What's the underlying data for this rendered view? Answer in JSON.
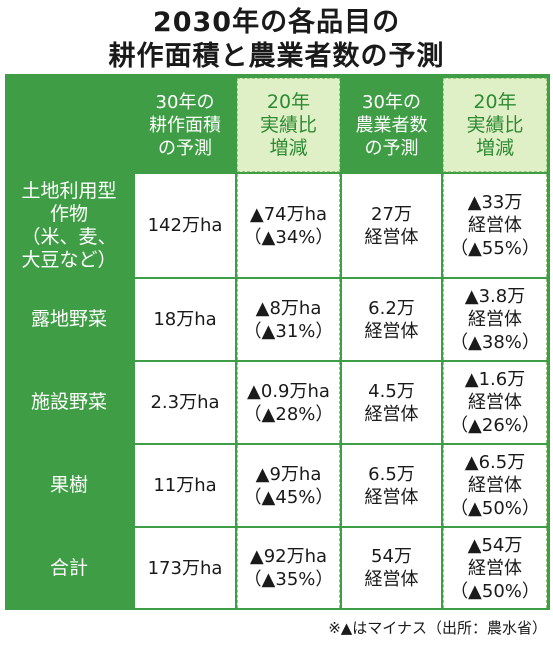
{
  "title": {
    "line1": "2030年の各品目の",
    "line2": "耕作面積と農業者数の予測"
  },
  "headers": {
    "area_forecast": "30年の\n耕作面積\nの予測",
    "area_change": "20年\n実績比\n増減",
    "farmers_forecast": "30年の\n農業者数\nの予測",
    "farmers_change": "20年\n実績比\n増減"
  },
  "rows": [
    {
      "label": "土地利用型\n作物\n（米、麦、\n大豆など）",
      "area": "142万ha",
      "area_change": "▲74万ha\n（▲34%）",
      "farmers": "27万\n経営体",
      "farmers_change": "▲33万\n経営体\n（▲55%）"
    },
    {
      "label": "露地野菜",
      "area": "18万ha",
      "area_change": "▲8万ha\n（▲31%）",
      "farmers": "6.2万\n経営体",
      "farmers_change": "▲3.8万\n経営体\n（▲38%）"
    },
    {
      "label": "施設野菜",
      "area": "2.3万ha",
      "area_change": "▲0.9万ha\n（▲28%）",
      "farmers": "4.5万\n経営体",
      "farmers_change": "▲1.6万\n経営体\n（▲26%）"
    },
    {
      "label": "果樹",
      "area": "11万ha",
      "area_change": "▲9万ha\n（▲45%）",
      "farmers": "6.5万\n経営体",
      "farmers_change": "▲6.5万\n経営体\n（▲50%）"
    },
    {
      "label": "合計",
      "area": "173万ha",
      "area_change": "▲92万ha\n（▲35%）",
      "farmers": "54万\n経営体",
      "farmers_change": "▲54万\n経営体\n（▲50%）"
    }
  ],
  "note": "※▲はマイナス（出所：農水省）",
  "colors": {
    "header_green": "#3f9e45",
    "light_green": "#dff0c6",
    "text": "#1a1a1a"
  }
}
